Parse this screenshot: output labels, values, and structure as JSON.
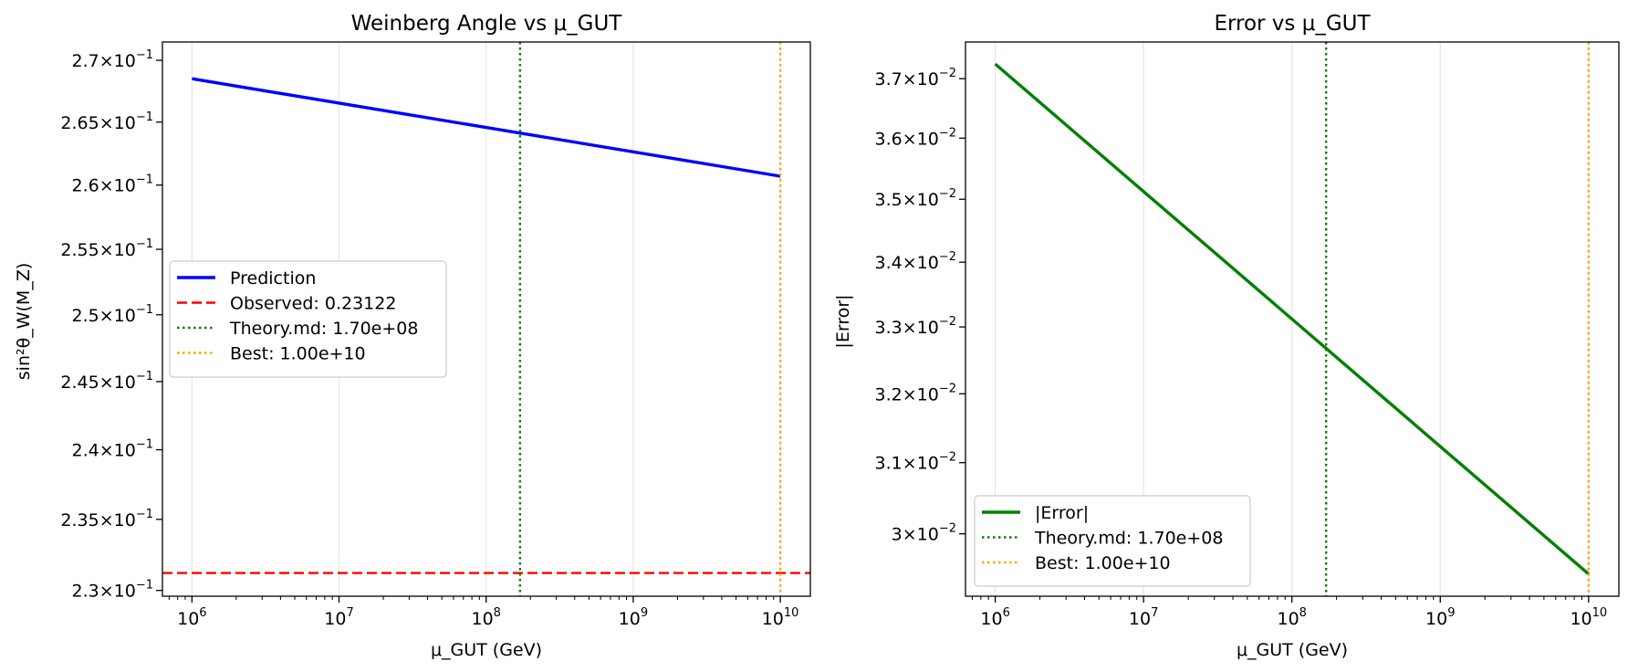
{
  "chart_data": [
    {
      "type": "line",
      "title": "Weinberg Angle vs μ_GUT",
      "xlabel": "μ_GUT (GeV)",
      "ylabel": "sin²θ_W(M_Z)",
      "xscale": "log",
      "yscale": "log",
      "xlim": [
        630000,
        16000000000
      ],
      "ylim": [
        0.2296,
        0.2715
      ],
      "x_ticks": [
        {
          "value": 1000000,
          "base": "10",
          "exp": "6"
        },
        {
          "value": 10000000,
          "base": "10",
          "exp": "7"
        },
        {
          "value": 100000000,
          "base": "10",
          "exp": "8"
        },
        {
          "value": 1000000000,
          "base": "10",
          "exp": "9"
        },
        {
          "value": 10000000000,
          "base": "10",
          "exp": "10"
        }
      ],
      "y_ticks": [
        {
          "value": 0.27,
          "mant": "2.7",
          "exp": "−1"
        },
        {
          "value": 0.265,
          "mant": "2.65",
          "exp": "−1"
        },
        {
          "value": 0.26,
          "mant": "2.6",
          "exp": "−1"
        },
        {
          "value": 0.255,
          "mant": "2.55",
          "exp": "−1"
        },
        {
          "value": 0.25,
          "mant": "2.5",
          "exp": "−1"
        },
        {
          "value": 0.245,
          "mant": "2.45",
          "exp": "−1"
        },
        {
          "value": 0.24,
          "mant": "2.4",
          "exp": "−1"
        },
        {
          "value": 0.235,
          "mant": "2.35",
          "exp": "−1"
        },
        {
          "value": 0.23,
          "mant": "2.3",
          "exp": "−1"
        }
      ],
      "grid": "x-major",
      "legend_position": "center-left",
      "series": [
        {
          "name": "Prediction",
          "kind": "line",
          "color": "#0000ff",
          "style": "solid",
          "x": [
            1000000,
            10000000000
          ],
          "y": [
            0.2685,
            0.2607
          ]
        },
        {
          "name": "Observed: 0.23122",
          "kind": "hline",
          "color": "#ff0000",
          "style": "dashed",
          "y": 0.23122
        },
        {
          "name": "Theory.md: 1.70e+08",
          "kind": "vline",
          "color": "#008000",
          "style": "dotted",
          "x": 170000000
        },
        {
          "name": "Best: 1.00e+10",
          "kind": "vline",
          "color": "#ffa500",
          "style": "dotted",
          "x": 10000000000
        }
      ]
    },
    {
      "type": "line",
      "title": "Error vs μ_GUT",
      "xlabel": "μ_GUT (GeV)",
      "ylabel": "|Error|",
      "xscale": "log",
      "yscale": "log",
      "xlim": [
        630000,
        16000000000
      ],
      "ylim": [
        0.02915,
        0.03763
      ],
      "x_ticks": [
        {
          "value": 1000000,
          "base": "10",
          "exp": "6"
        },
        {
          "value": 10000000,
          "base": "10",
          "exp": "7"
        },
        {
          "value": 100000000,
          "base": "10",
          "exp": "8"
        },
        {
          "value": 1000000000,
          "base": "10",
          "exp": "9"
        },
        {
          "value": 10000000000,
          "base": "10",
          "exp": "10"
        }
      ],
      "y_ticks": [
        {
          "value": 0.037,
          "mant": "3.7",
          "exp": "−2"
        },
        {
          "value": 0.036,
          "mant": "3.6",
          "exp": "−2"
        },
        {
          "value": 0.035,
          "mant": "3.5",
          "exp": "−2"
        },
        {
          "value": 0.034,
          "mant": "3.4",
          "exp": "−2"
        },
        {
          "value": 0.033,
          "mant": "3.3",
          "exp": "−2"
        },
        {
          "value": 0.032,
          "mant": "3.2",
          "exp": "−2"
        },
        {
          "value": 0.031,
          "mant": "3.1",
          "exp": "−2"
        },
        {
          "value": 0.03,
          "mant": "3",
          "exp": "−2"
        }
      ],
      "grid": "x-major",
      "legend_position": "lower-left",
      "series": [
        {
          "name": "|Error|",
          "kind": "line",
          "color": "#008000",
          "style": "solid",
          "x": [
            1000000,
            10000000000
          ],
          "y": [
            0.03725,
            0.02945
          ]
        },
        {
          "name": "Theory.md: 1.70e+08",
          "kind": "vline",
          "color": "#008000",
          "style": "dotted",
          "x": 170000000
        },
        {
          "name": "Best: 1.00e+10",
          "kind": "vline",
          "color": "#ffa500",
          "style": "dotted",
          "x": 10000000000
        }
      ]
    }
  ]
}
